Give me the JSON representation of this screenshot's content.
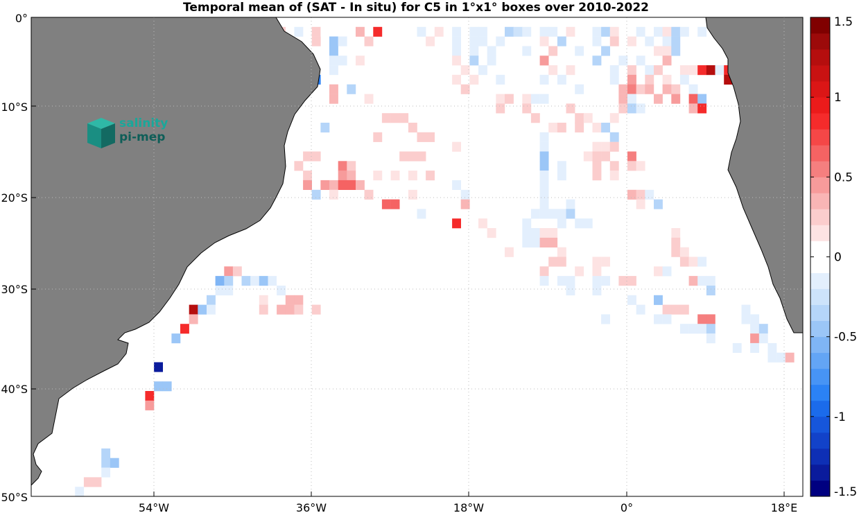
{
  "title": "Temporal mean of (SAT - In situ) for C5 in 1°x1° boxes over 2010-2022",
  "map": {
    "lon_range": [
      -68,
      20
    ],
    "lat_range": [
      -50,
      0
    ],
    "land_color": "#808080",
    "ocean_color": "#ffffff",
    "grid": true,
    "lat_labels": [
      "0°",
      "10°S",
      "20°S",
      "30°S",
      "40°S",
      "50°S"
    ],
    "lon_labels": [
      "54°W",
      "36°W",
      "18°W",
      "0°",
      "18°E"
    ]
  },
  "colorbar": {
    "range": [
      -1.5,
      1.5
    ],
    "levels": 30,
    "tick_labels": [
      "1.5",
      "1",
      "0.5",
      "0",
      "-0.5",
      "-1",
      "-1.5"
    ],
    "colors": [
      "#000080",
      "#0a1b9c",
      "#0e2fb5",
      "#1242c9",
      "#1656db",
      "#1b6beb",
      "#2b82f5",
      "#4794f5",
      "#63a5f5",
      "#7fb5f5",
      "#9bc6f7",
      "#b5d5f9",
      "#cde3fb",
      "#e3effd",
      "#ffffff",
      "#ffffff",
      "#fde3e3",
      "#fbcdcd",
      "#f9b5b5",
      "#f79b9b",
      "#f57f7f",
      "#f56363",
      "#f54747",
      "#f52b2b",
      "#eb1b1b",
      "#db1616",
      "#c91212",
      "#b50e0e",
      "#9c0a0a",
      "#800000"
    ]
  },
  "logo": {
    "line1": "salinity",
    "line2": "pi-mep"
  },
  "chart_data": {
    "type": "heatmap",
    "title": "Temporal mean of (SAT - In situ) for C5 in 1°x1° boxes over 2010-2022",
    "xlabel": "",
    "ylabel": "",
    "x_unit": "longitude (degrees east)",
    "y_unit": "latitude (degrees north)",
    "vmin": -1.5,
    "vmax": 1.5,
    "cells": [
      [
        -42,
        -1,
        0.2
      ],
      [
        -40,
        -1,
        0.2
      ],
      [
        -38,
        -1,
        -0.1
      ],
      [
        -36,
        -1,
        0.2
      ],
      [
        -35,
        -1,
        -0.05
      ],
      [
        -31,
        -1,
        0.3
      ],
      [
        -29,
        -1,
        0.9
      ],
      [
        -24,
        -1,
        -0.1
      ],
      [
        -22,
        -1,
        0.1
      ],
      [
        -20,
        -1,
        -0.1
      ],
      [
        -18,
        -1,
        -0.15
      ],
      [
        -17,
        -1,
        -0.1
      ],
      [
        -14,
        -1,
        -0.35
      ],
      [
        -13,
        -1,
        -0.25
      ],
      [
        -12,
        -1,
        -0.1
      ],
      [
        -10,
        -1,
        -0.1
      ],
      [
        -9,
        -1,
        -0.15
      ],
      [
        -7,
        -1,
        0.1
      ],
      [
        -4,
        -1,
        -0.2
      ],
      [
        -3,
        -1,
        -0.35
      ],
      [
        -2,
        -1,
        0.1
      ],
      [
        1,
        -1,
        -0.15
      ],
      [
        3,
        -1,
        -0.1
      ],
      [
        4,
        -1,
        0.1
      ],
      [
        5,
        -1,
        -0.35
      ],
      [
        6,
        -1,
        -0.1
      ],
      [
        8,
        -1,
        -0.1
      ],
      [
        -43,
        -2,
        -0.5
      ],
      [
        -39,
        -2,
        0.1
      ],
      [
        -36,
        -2,
        0.2
      ],
      [
        -34,
        -2,
        -0.5
      ],
      [
        -33,
        -2,
        -0.1
      ],
      [
        -30,
        -2,
        0.2
      ],
      [
        -23,
        -2,
        0.1
      ],
      [
        -20,
        -2,
        -0.2
      ],
      [
        -18,
        -2,
        -0.1
      ],
      [
        -17,
        -2,
        -0.2
      ],
      [
        -15,
        -2,
        -0.15
      ],
      [
        -10,
        -2,
        0.1
      ],
      [
        -8,
        -2,
        -0.3
      ],
      [
        -4,
        -2,
        -0.2
      ],
      [
        -2,
        -2,
        0.2
      ],
      [
        0,
        -2,
        0.1
      ],
      [
        2,
        -2,
        -0.1
      ],
      [
        4,
        -2,
        -0.15
      ],
      [
        5,
        -2,
        -0.4
      ],
      [
        -38,
        -3,
        0.2
      ],
      [
        -34,
        -3,
        -0.5
      ],
      [
        -20,
        -3,
        -0.15
      ],
      [
        -18,
        -3,
        -0.2
      ],
      [
        -16,
        -3,
        -0.1
      ],
      [
        -12,
        -3,
        -0.15
      ],
      [
        -9,
        -3,
        0.2
      ],
      [
        -6,
        -3,
        -0.1
      ],
      [
        -3,
        -3,
        -0.3
      ],
      [
        3,
        -3,
        0.1
      ],
      [
        4,
        -3,
        0.1
      ],
      [
        5,
        -3,
        -0.4
      ],
      [
        -37,
        -4,
        0.15
      ],
      [
        -34,
        -4,
        -0.2
      ],
      [
        -33,
        -4,
        -0.1
      ],
      [
        -31,
        -4,
        0.15
      ],
      [
        -20,
        -4,
        0.1
      ],
      [
        -18,
        -4,
        -0.4
      ],
      [
        -16,
        -4,
        -0.15
      ],
      [
        -10,
        -4,
        0.4
      ],
      [
        -4,
        -4,
        -0.3
      ],
      [
        -1,
        -4,
        -0.1
      ],
      [
        1,
        -4,
        -0.2
      ],
      [
        4,
        -4,
        0.3
      ],
      [
        -34,
        -5,
        -0.1
      ],
      [
        -19,
        -5,
        0.1
      ],
      [
        -17,
        -5,
        -0.1
      ],
      [
        -9,
        -5,
        0.1
      ],
      [
        -7,
        -5,
        0.1
      ],
      [
        -2,
        -5,
        -0.1
      ],
      [
        0,
        -5,
        0.2
      ],
      [
        2,
        -5,
        -0.1
      ],
      [
        3,
        -5,
        0.2
      ],
      [
        6,
        -5,
        0.1
      ],
      [
        7,
        -5,
        0.15
      ],
      [
        8,
        -5,
        0.9
      ],
      [
        9,
        -5,
        1.2
      ],
      [
        10,
        -5,
        -0.1
      ],
      [
        11,
        -5,
        0.8
      ],
      [
        12,
        -5,
        -1.4
      ],
      [
        -36,
        -6,
        -0.8
      ],
      [
        -20,
        -6,
        0.15
      ],
      [
        -18,
        -6,
        0.1
      ],
      [
        -15,
        -6,
        -0.1
      ],
      [
        -10,
        -6,
        -0.1
      ],
      [
        -8,
        -6,
        -0.1
      ],
      [
        -2,
        -6,
        -0.2
      ],
      [
        0,
        -6,
        0.4
      ],
      [
        2,
        -6,
        0.2
      ],
      [
        4,
        -6,
        0.15
      ],
      [
        6,
        -6,
        -0.1
      ],
      [
        11,
        -6,
        1.3
      ],
      [
        -34,
        -7,
        0.3
      ],
      [
        -32,
        -7,
        -0.3
      ],
      [
        -19,
        -7,
        0.2
      ],
      [
        -6,
        -7,
        -0.1
      ],
      [
        -1,
        -7,
        0.3
      ],
      [
        0,
        -7,
        0.5
      ],
      [
        1,
        -7,
        0.2
      ],
      [
        2,
        -7,
        0.3
      ],
      [
        4,
        -7,
        0.3
      ],
      [
        5,
        -7,
        0.2
      ],
      [
        7,
        -7,
        -0.1
      ],
      [
        -34,
        -8,
        0.3
      ],
      [
        -30,
        -8,
        0.15
      ],
      [
        -15,
        -8,
        0.15
      ],
      [
        -14,
        -8,
        0.25
      ],
      [
        -12,
        -8,
        0.1
      ],
      [
        -11,
        -8,
        -0.2
      ],
      [
        -10,
        -8,
        -0.2
      ],
      [
        -1,
        -8,
        0.3
      ],
      [
        0,
        -8,
        -0.2
      ],
      [
        3,
        -8,
        0.3
      ],
      [
        5,
        -8,
        0.4
      ],
      [
        7,
        -8,
        0.6
      ],
      [
        8,
        -8,
        -0.5
      ],
      [
        -15,
        -9,
        0.2
      ],
      [
        -12,
        -9,
        0.2
      ],
      [
        -7,
        -9,
        0.2
      ],
      [
        -1,
        -9,
        0.2
      ],
      [
        0,
        -9,
        -0.3
      ],
      [
        1,
        -9,
        -0.15
      ],
      [
        7,
        -9,
        0.3
      ],
      [
        8,
        -9,
        0.9
      ],
      [
        -28,
        -10,
        0.2
      ],
      [
        -27,
        -10,
        0.2
      ],
      [
        -26,
        -10,
        0.2
      ],
      [
        -11,
        -10,
        0.2
      ],
      [
        -6,
        -10,
        0.2
      ],
      [
        -5,
        -10,
        0.15
      ],
      [
        -2,
        -10,
        0.1
      ],
      [
        -35,
        -11,
        -0.3
      ],
      [
        -25,
        -11,
        0.2
      ],
      [
        -9,
        -11,
        0.1
      ],
      [
        -8,
        -11,
        0.2
      ],
      [
        -6,
        -11,
        0.2
      ],
      [
        -4,
        -11,
        0.1
      ],
      [
        -3,
        -11,
        -0.3
      ],
      [
        -29,
        -12,
        0.2
      ],
      [
        -24,
        -12,
        0.2
      ],
      [
        -23,
        -12,
        0.2
      ],
      [
        -10,
        -12,
        -0.2
      ],
      [
        -2,
        -12,
        -0.3
      ],
      [
        -20,
        -13,
        0.1
      ],
      [
        -10,
        -13,
        -0.15
      ],
      [
        -4,
        -13,
        0.1
      ],
      [
        -3,
        -13,
        0.1
      ],
      [
        -2,
        -13,
        0.2
      ],
      [
        -37,
        -14,
        0.2
      ],
      [
        -36,
        -14,
        0.2
      ],
      [
        -26,
        -14,
        0.2
      ],
      [
        -25,
        -14,
        0.2
      ],
      [
        -24,
        -14,
        0.2
      ],
      [
        -10,
        -14,
        -0.5
      ],
      [
        -5,
        -14,
        0.1
      ],
      [
        -4,
        -14,
        0.2
      ],
      [
        -3,
        -14,
        0.25
      ],
      [
        0,
        -14,
        0.5
      ],
      [
        -38,
        -15,
        0.2
      ],
      [
        -33,
        -15,
        0.5
      ],
      [
        -32,
        -15,
        0.2
      ],
      [
        -10,
        -15,
        -0.5
      ],
      [
        -4,
        -15,
        0.2
      ],
      [
        -2,
        -15,
        0.2
      ],
      [
        0,
        -15,
        0.2
      ],
      [
        1,
        -15,
        0.1
      ],
      [
        -37,
        -16,
        0.2
      ],
      [
        -33,
        -16,
        0.4
      ],
      [
        -32,
        -16,
        0.3
      ],
      [
        -29,
        -16,
        0.15
      ],
      [
        -27,
        -16,
        0.1
      ],
      [
        -25,
        -16,
        0.1
      ],
      [
        -23,
        -16,
        0.2
      ],
      [
        -8,
        -16,
        -0.1
      ],
      [
        -8,
        -15,
        -0.1
      ],
      [
        -10,
        -16,
        -0.1
      ],
      [
        -4,
        -16,
        0.2
      ],
      [
        -2,
        -16,
        0.1
      ],
      [
        -37,
        -17,
        0.4
      ],
      [
        -35,
        -17,
        0.4
      ],
      [
        -34,
        -17,
        0.3
      ],
      [
        -33,
        -17,
        0.6
      ],
      [
        -32,
        -17,
        0.6
      ],
      [
        -31,
        -17,
        0.3
      ],
      [
        -20,
        -17,
        -0.1
      ],
      [
        -10,
        -17,
        -0.1
      ],
      [
        -10,
        -16,
        -0.1
      ],
      [
        -36,
        -18,
        -0.3
      ],
      [
        -34,
        -18,
        0.15
      ],
      [
        -30,
        -18,
        0.2
      ],
      [
        -25,
        -18,
        0.1
      ],
      [
        -19,
        -18,
        -0.2
      ],
      [
        -10,
        -18,
        -0.1
      ],
      [
        0,
        -18,
        0.3
      ],
      [
        1,
        -18,
        0.2
      ],
      [
        2,
        -18,
        -0.1
      ],
      [
        -28,
        -19,
        0.6
      ],
      [
        -27,
        -19,
        0.6
      ],
      [
        -19,
        -19,
        0.3
      ],
      [
        -10,
        -19,
        -0.2
      ],
      [
        -7,
        -19,
        -0.2
      ],
      [
        1,
        -19,
        0.1
      ],
      [
        3,
        -19,
        -0.3
      ],
      [
        -24,
        -20,
        -0.1
      ],
      [
        -11,
        -20,
        -0.1
      ],
      [
        -10,
        -20,
        -0.1
      ],
      [
        -9,
        -20,
        -0.1
      ],
      [
        -8,
        -20,
        -0.2
      ],
      [
        -7,
        -20,
        -0.4
      ],
      [
        -20,
        -21,
        0.8
      ],
      [
        -17,
        -21,
        0.1
      ],
      [
        -12,
        -21,
        -0.1
      ],
      [
        -8,
        -21,
        -0.1
      ],
      [
        -6,
        -21,
        -0.1
      ],
      [
        -5,
        -21,
        -0.15
      ],
      [
        -16,
        -22,
        0.1
      ],
      [
        -12,
        -22,
        -0.1
      ],
      [
        -11,
        -22,
        -0.1
      ],
      [
        -10,
        -22,
        0.1
      ],
      [
        -9,
        -22,
        0.1
      ],
      [
        5,
        -22,
        0.1
      ],
      [
        -12,
        -23,
        -0.1
      ],
      [
        -11,
        -23,
        -0.1
      ],
      [
        -10,
        -23,
        0.3
      ],
      [
        -9,
        -23,
        0.3
      ],
      [
        5,
        -23,
        0.2
      ],
      [
        -14,
        -24,
        0.1
      ],
      [
        -8,
        -24,
        0.1
      ],
      [
        5,
        -24,
        0.2
      ],
      [
        6,
        -24,
        0.1
      ],
      [
        -9,
        -25,
        0.2
      ],
      [
        -8,
        -25,
        0.2
      ],
      [
        -4,
        -25,
        0.1
      ],
      [
        -3,
        -25,
        0.1
      ],
      [
        6,
        -25,
        0.2
      ],
      [
        7,
        -25,
        0.1
      ],
      [
        8,
        -25,
        -0.1
      ],
      [
        -46,
        -26,
        0.4
      ],
      [
        -45,
        -26,
        0.2
      ],
      [
        -10,
        -26,
        0.2
      ],
      [
        -6,
        -26,
        0.1
      ],
      [
        -4,
        -26,
        0.1
      ],
      [
        3,
        -26,
        0.1
      ],
      [
        4,
        -26,
        -0.2
      ],
      [
        -47,
        -27,
        -0.6
      ],
      [
        -46,
        -27,
        -0.3
      ],
      [
        -44,
        -27,
        -0.3
      ],
      [
        -43,
        -27,
        -0.1
      ],
      [
        -42,
        -27,
        -0.5
      ],
      [
        -41,
        -27,
        -0.1
      ],
      [
        -40,
        -27,
        -0.05
      ],
      [
        -10,
        -27,
        -0.15
      ],
      [
        -8,
        -27,
        -0.2
      ],
      [
        -7,
        -27,
        -0.1
      ],
      [
        -4,
        -27,
        -0.2
      ],
      [
        -3,
        -27,
        -0.2
      ],
      [
        -1,
        -27,
        0.2
      ],
      [
        0,
        -27,
        0.2
      ],
      [
        7,
        -27,
        0.3
      ],
      [
        8,
        -27,
        -0.15
      ],
      [
        9,
        -27,
        -0.2
      ],
      [
        -47,
        -28,
        -0.2
      ],
      [
        -46,
        -28,
        -0.1
      ],
      [
        -40,
        -28,
        -0.2
      ],
      [
        -7,
        -28,
        -0.2
      ],
      [
        -4,
        -28,
        -0.2
      ],
      [
        9,
        -28,
        -0.3
      ],
      [
        -48,
        -29,
        -0.3
      ],
      [
        -42,
        -29,
        0.1
      ],
      [
        -39,
        -29,
        0.3
      ],
      [
        -38,
        -29,
        0.3
      ],
      [
        0,
        -29,
        -0.1
      ],
      [
        3,
        -29,
        -0.5
      ],
      [
        -50,
        -30,
        1.3
      ],
      [
        -49,
        -30,
        -0.5
      ],
      [
        -48,
        -30,
        -0.2
      ],
      [
        -42,
        -30,
        0.2
      ],
      [
        -40,
        -30,
        0.3
      ],
      [
        -39,
        -30,
        0.35
      ],
      [
        -38,
        -30,
        0.2
      ],
      [
        -36,
        -30,
        0.2
      ],
      [
        1,
        -30,
        -0.1
      ],
      [
        4,
        -30,
        0.2
      ],
      [
        5,
        -30,
        0.2
      ],
      [
        6,
        -30,
        0.2
      ],
      [
        13,
        -30,
        -0.2
      ],
      [
        -50,
        -31,
        0.35
      ],
      [
        -3,
        -31,
        -0.1
      ],
      [
        3,
        -31,
        -0.1
      ],
      [
        4,
        -31,
        -0.1
      ],
      [
        8,
        -31,
        0.5
      ],
      [
        9,
        -31,
        0.5
      ],
      [
        13,
        -31,
        -0.2
      ],
      [
        14,
        -31,
        -0.1
      ],
      [
        -51,
        -32,
        0.9
      ],
      [
        6,
        -32,
        -0.1
      ],
      [
        7,
        -32,
        -0.1
      ],
      [
        8,
        -32,
        -0.1
      ],
      [
        9,
        -32,
        -0.3
      ],
      [
        14,
        -32,
        -0.1
      ],
      [
        15,
        -32,
        -0.3
      ],
      [
        -52,
        -33,
        -0.5
      ],
      [
        9,
        -33,
        -0.2
      ],
      [
        14,
        -33,
        0.4
      ],
      [
        15,
        -33,
        -0.1
      ],
      [
        12,
        -34,
        -0.1
      ],
      [
        14,
        -34,
        -0.1
      ],
      [
        16,
        -34,
        -0.15
      ],
      [
        16,
        -35,
        -0.15
      ],
      [
        17,
        -35,
        -0.2
      ],
      [
        18,
        -35,
        0.3
      ],
      [
        -54,
        -36,
        -1.4
      ],
      [
        -54,
        -38,
        -0.5
      ],
      [
        -53,
        -38,
        -0.5
      ],
      [
        -55,
        -39,
        0.9
      ],
      [
        -55,
        -40,
        0.4
      ],
      [
        -60,
        -45,
        -0.3
      ],
      [
        -60,
        -46,
        -0.4
      ],
      [
        -59,
        -46,
        -0.5
      ],
      [
        -60,
        -47,
        -0.15
      ],
      [
        -61,
        -48,
        0.2
      ],
      [
        -62,
        -48,
        0.2
      ],
      [
        -63,
        -49,
        -0.15
      ],
      [
        -64,
        -52,
        0.2
      ]
    ]
  }
}
